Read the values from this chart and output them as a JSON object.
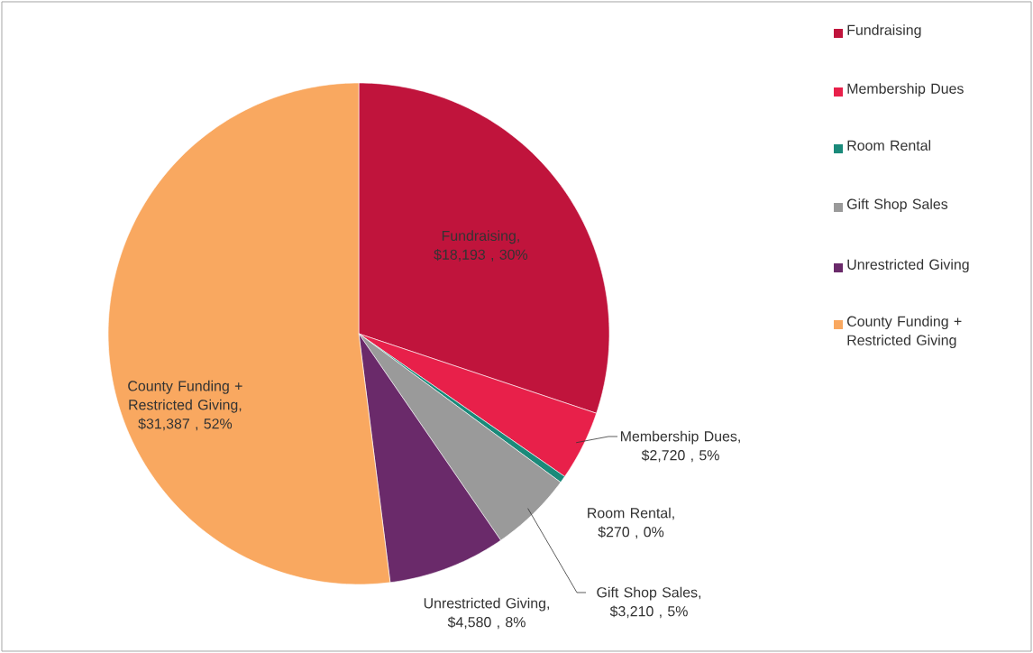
{
  "chart_data": {
    "type": "pie",
    "categories": [
      "Fundraising",
      "Membership Dues",
      "Room Rental",
      "Gift Shop Sales",
      "Unrestricted Giving",
      "County Funding + Restricted Giving"
    ],
    "values": [
      18193,
      2720,
      270,
      3210,
      4580,
      31387
    ],
    "value_labels": [
      "Fundraising, $18,193 , 30%",
      "Membership Dues, $2,720 , 5%",
      "Room Rental, $270 , 0%",
      "Gift Shop Sales, $3,210 , 5%",
      "Unrestricted Giving, $4,580 , 8%",
      "County Funding + Restricted Giving, $31,387 , 52%"
    ],
    "colors": [
      "#c0143c",
      "#e8204a",
      "#1a8a7a",
      "#9a9a9a",
      "#6a2a6a",
      "#f9a860"
    ],
    "legend": "right"
  }
}
